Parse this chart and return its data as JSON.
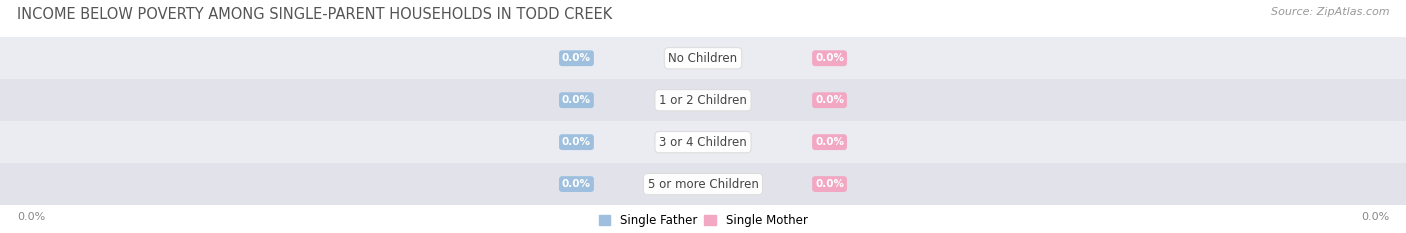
{
  "title": "INCOME BELOW POVERTY AMONG SINGLE-PARENT HOUSEHOLDS IN TODD CREEK",
  "source": "Source: ZipAtlas.com",
  "categories": [
    "No Children",
    "1 or 2 Children",
    "3 or 4 Children",
    "5 or more Children"
  ],
  "single_father_values": [
    0.0,
    0.0,
    0.0,
    0.0
  ],
  "single_mother_values": [
    0.0,
    0.0,
    0.0,
    0.0
  ],
  "father_color": "#9ec0de",
  "mother_color": "#f2a7c3",
  "father_label": "Single Father",
  "mother_label": "Single Mother",
  "axis_label_left": "0.0%",
  "axis_label_right": "0.0%",
  "title_fontsize": 10.5,
  "source_fontsize": 8,
  "category_fontsize": 8.5,
  "value_fontsize": 7.5,
  "xlim": [
    -1,
    1
  ],
  "background_color": "#ffffff",
  "row_bg_colors": [
    "#ebebf2",
    "#e2e2ea"
  ],
  "title_color": "#555555",
  "legend_fontsize": 8.5,
  "cat_label_color": "#444444",
  "val_text_color": "#ffffff"
}
